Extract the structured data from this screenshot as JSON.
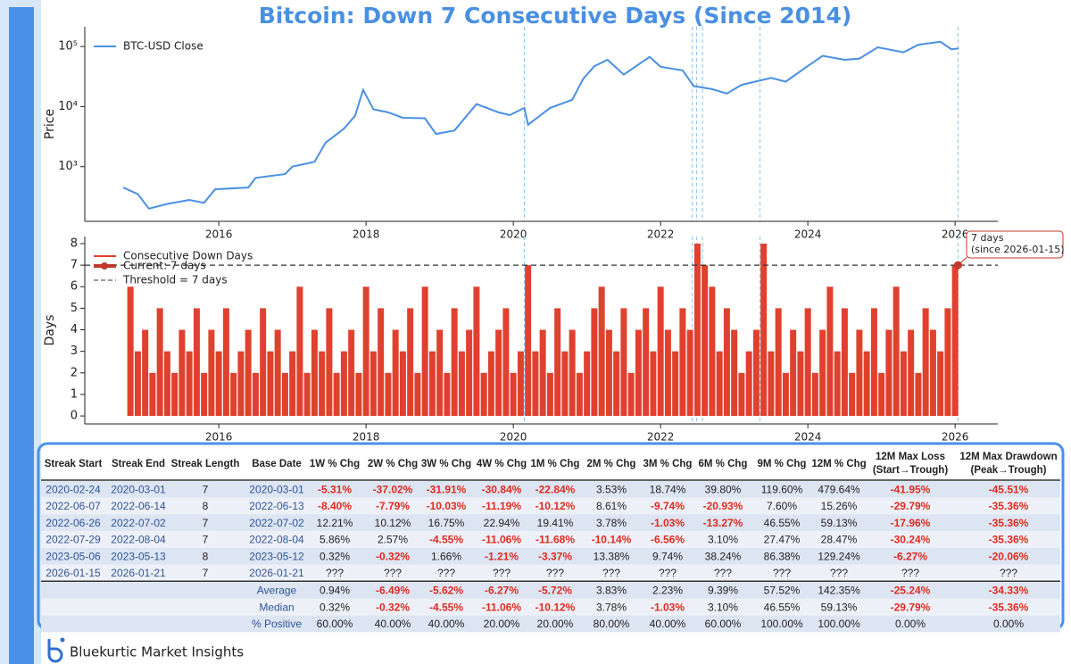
{
  "title": "Bitcoin: Down 7 Consecutive Days (Since 2014)",
  "footer": "Bluekurtic Market Insights",
  "chart_data": [
    {
      "type": "line",
      "y_label": "Price",
      "log_y": true,
      "xlim": [
        2014.18,
        2026.58
      ],
      "xticks": [
        2016,
        2018,
        2020,
        2022,
        2024,
        2026
      ],
      "ylim": [
        123,
        213000
      ],
      "yticks": [
        {
          "value": 1000,
          "label": "10³"
        },
        {
          "value": 10000,
          "label": "10⁴"
        },
        {
          "value": 100000,
          "label": "10⁵"
        }
      ],
      "vlines": [
        2020.15,
        2022.43,
        2022.49,
        2022.57,
        2023.35,
        2026.04
      ],
      "legend": "upper left",
      "x": [
        2014.7,
        2014.9,
        2015.05,
        2015.3,
        2015.6,
        2015.8,
        2015.95,
        2016.4,
        2016.5,
        2016.9,
        2017.0,
        2017.3,
        2017.45,
        2017.7,
        2017.85,
        2017.96,
        2018.1,
        2018.3,
        2018.5,
        2018.8,
        2018.95,
        2019.2,
        2019.5,
        2019.8,
        2019.95,
        2020.15,
        2020.2,
        2020.5,
        2020.8,
        2020.95,
        2021.1,
        2021.28,
        2021.5,
        2021.85,
        2022.0,
        2022.3,
        2022.45,
        2022.7,
        2022.9,
        2023.1,
        2023.5,
        2023.7,
        2023.95,
        2024.2,
        2024.5,
        2024.7,
        2024.95,
        2025.3,
        2025.5,
        2025.8,
        2025.95,
        2026.05
      ],
      "series": [
        {
          "name": "BTC-USD Close",
          "color": "#4a90e2",
          "values": [
            450,
            350,
            200,
            240,
            280,
            250,
            420,
            450,
            650,
            750,
            1000,
            1200,
            2500,
            4300,
            7000,
            19000,
            9000,
            8000,
            6500,
            6400,
            3500,
            4000,
            11000,
            8000,
            7200,
            9500,
            5000,
            9500,
            13000,
            29000,
            47000,
            60000,
            34000,
            67000,
            46000,
            40000,
            22000,
            19500,
            16500,
            23000,
            30000,
            26000,
            43000,
            70000,
            60000,
            63000,
            97000,
            80000,
            107000,
            120000,
            90000,
            93000
          ]
        }
      ]
    },
    {
      "type": "bar",
      "y_label": "Days",
      "xlim": [
        2014.18,
        2026.58
      ],
      "xticks": [
        2016,
        2018,
        2020,
        2022,
        2024,
        2026
      ],
      "ylim": [
        -0.37,
        8.33
      ],
      "yticks": [
        0,
        1,
        2,
        3,
        4,
        5,
        6,
        7,
        8
      ],
      "legend": "upper left",
      "x": [
        2014.8,
        2014.9,
        2015.0,
        2015.1,
        2015.2,
        2015.3,
        2015.4,
        2015.5,
        2015.6,
        2015.7,
        2015.8,
        2015.9,
        2016.0,
        2016.1,
        2016.2,
        2016.3,
        2016.4,
        2016.5,
        2016.6,
        2016.7,
        2016.8,
        2016.9,
        2017.0,
        2017.1,
        2017.2,
        2017.3,
        2017.4,
        2017.5,
        2017.6,
        2017.7,
        2017.8,
        2017.9,
        2018.0,
        2018.1,
        2018.2,
        2018.3,
        2018.4,
        2018.5,
        2018.6,
        2018.7,
        2018.8,
        2018.9,
        2019.0,
        2019.1,
        2019.2,
        2019.3,
        2019.4,
        2019.5,
        2019.6,
        2019.7,
        2019.8,
        2019.9,
        2020.0,
        2020.1,
        2020.2,
        2020.3,
        2020.4,
        2020.5,
        2020.6,
        2020.7,
        2020.8,
        2020.9,
        2021.0,
        2021.1,
        2021.2,
        2021.3,
        2021.4,
        2021.5,
        2021.6,
        2021.7,
        2021.8,
        2021.9,
        2022.0,
        2022.1,
        2022.2,
        2022.3,
        2022.4,
        2022.5,
        2022.6,
        2022.7,
        2022.8,
        2022.9,
        2023.0,
        2023.1,
        2023.2,
        2023.3,
        2023.4,
        2023.5,
        2023.6,
        2023.7,
        2023.8,
        2023.9,
        2024.0,
        2024.1,
        2024.2,
        2024.3,
        2024.4,
        2024.5,
        2024.6,
        2024.7,
        2024.8,
        2024.9,
        2025.0,
        2025.1,
        2025.2,
        2025.3,
        2025.4,
        2025.5,
        2025.6,
        2025.7,
        2025.8,
        2025.9,
        2026.0
      ],
      "series": [
        {
          "name": "Consecutive Down Days",
          "color": "#e0412f",
          "values": [
            6,
            3,
            4,
            2,
            5,
            3,
            2,
            4,
            3,
            5,
            2,
            4,
            3,
            5,
            2,
            3,
            4,
            2,
            5,
            3,
            4,
            2,
            3,
            6,
            2,
            4,
            3,
            5,
            2,
            3,
            4,
            2,
            6,
            3,
            5,
            2,
            4,
            3,
            5,
            2,
            6,
            3,
            4,
            2,
            5,
            3,
            4,
            6,
            2,
            3,
            4,
            5,
            2,
            3,
            7,
            3,
            4,
            2,
            5,
            3,
            4,
            2,
            3,
            5,
            6,
            4,
            3,
            5,
            2,
            4,
            5,
            3,
            6,
            4,
            3,
            5,
            4,
            8,
            7,
            6,
            3,
            5,
            4,
            2,
            3,
            4,
            8,
            3,
            5,
            2,
            4,
            3,
            5,
            2,
            4,
            6,
            3,
            5,
            2,
            4,
            3,
            5,
            2,
            4,
            6,
            3,
            4,
            2,
            5,
            4,
            3,
            5,
            7
          ]
        }
      ],
      "current": {
        "name": "Current: 7 days",
        "x": 2026.04,
        "value": 7,
        "color": "#c0392b"
      },
      "threshold": {
        "name": "Threshold = 7 days",
        "value": 7
      },
      "annotation": [
        "7 days",
        "(since 2026-01-15)"
      ]
    }
  ],
  "table": {
    "columns": [
      [
        "Streak Start"
      ],
      [
        "Streak End"
      ],
      [
        "Streak Length"
      ],
      [
        "Base Date"
      ],
      [
        "1W % Chg"
      ],
      [
        "2W % Chg"
      ],
      [
        "3W % Chg"
      ],
      [
        "4W % Chg"
      ],
      [
        "1M % Chg"
      ],
      [
        "2M % Chg"
      ],
      [
        "3M % Chg"
      ],
      [
        "6M % Chg"
      ],
      [
        "9M % Chg"
      ],
      [
        "12M % Chg"
      ],
      [
        "12M Max Loss",
        "(Start→Trough)"
      ],
      [
        "12M Max Drawdown",
        "(Peak→Trough)"
      ]
    ],
    "rows": [
      [
        "2020-02-24",
        "2020-03-01",
        "7",
        "2020-03-01",
        "-5.31%",
        "-37.02%",
        "-31.91%",
        "-30.84%",
        "-22.84%",
        "3.53%",
        "18.74%",
        "39.80%",
        "119.60%",
        "479.64%",
        "-41.95%",
        "-45.51%"
      ],
      [
        "2022-06-07",
        "2022-06-14",
        "8",
        "2022-06-13",
        "-8.40%",
        "-7.79%",
        "-10.03%",
        "-11.19%",
        "-10.12%",
        "8.61%",
        "-9.74%",
        "-20.93%",
        "7.60%",
        "15.26%",
        "-29.79%",
        "-35.36%"
      ],
      [
        "2022-06-26",
        "2022-07-02",
        "7",
        "2022-07-02",
        "12.21%",
        "10.12%",
        "16.75%",
        "22.94%",
        "19.41%",
        "3.78%",
        "-1.03%",
        "-13.27%",
        "46.55%",
        "59.13%",
        "-17.96%",
        "-35.36%"
      ],
      [
        "2022-07-29",
        "2022-08-04",
        "7",
        "2022-08-04",
        "5.86%",
        "2.57%",
        "-4.55%",
        "-11.06%",
        "-11.68%",
        "-10.14%",
        "-6.56%",
        "3.10%",
        "27.47%",
        "28.47%",
        "-30.24%",
        "-35.36%"
      ],
      [
        "2023-05-06",
        "2023-05-13",
        "8",
        "2023-05-12",
        "0.32%",
        "-0.32%",
        "1.66%",
        "-1.21%",
        "-3.37%",
        "13.38%",
        "9.74%",
        "38.24%",
        "86.38%",
        "129.24%",
        "-6.27%",
        "-20.06%"
      ],
      [
        "2026-01-15",
        "2026-01-21",
        "7",
        "2026-01-21",
        "???",
        "???",
        "???",
        "???",
        "???",
        "???",
        "???",
        "???",
        "???",
        "???",
        "???",
        "???"
      ]
    ],
    "summary": [
      [
        "Average",
        "0.94%",
        "-6.49%",
        "-5.62%",
        "-6.27%",
        "-5.72%",
        "3.83%",
        "2.23%",
        "9.39%",
        "57.52%",
        "142.35%",
        "-25.24%",
        "-34.33%"
      ],
      [
        "Median",
        "0.32%",
        "-0.32%",
        "-4.55%",
        "-11.06%",
        "-10.12%",
        "3.78%",
        "-1.03%",
        "3.10%",
        "46.55%",
        "59.13%",
        "-29.79%",
        "-35.36%"
      ],
      [
        "% Positive",
        "60.00%",
        "40.00%",
        "40.00%",
        "20.00%",
        "20.00%",
        "80.00%",
        "40.00%",
        "60.00%",
        "100.00%",
        "100.00%",
        "0.00%",
        "0.00%"
      ]
    ]
  }
}
